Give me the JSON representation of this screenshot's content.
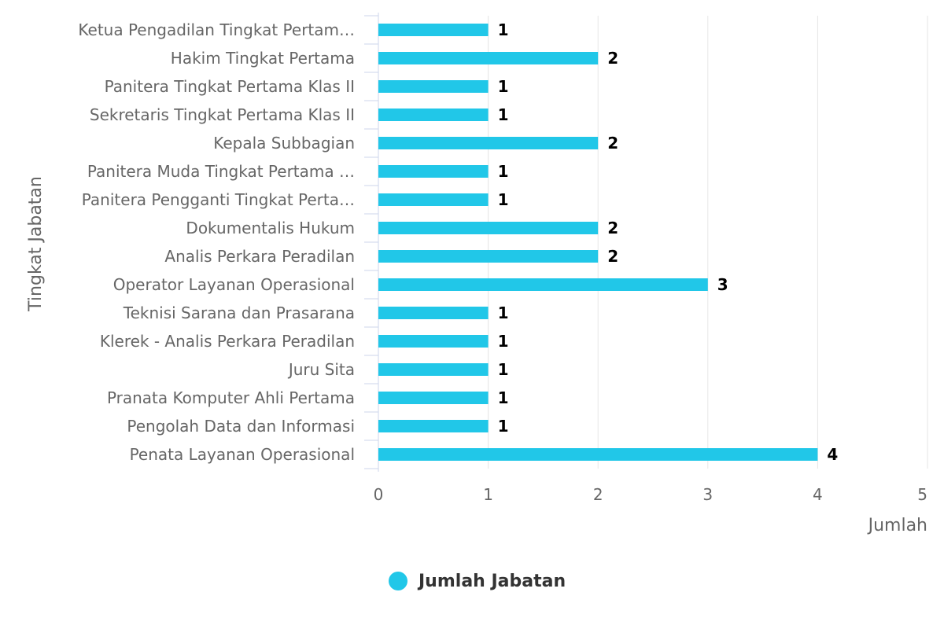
{
  "chart_data": {
    "type": "bar",
    "orientation": "horizontal",
    "categories": [
      "Ketua Pengadilan Tingkat Pertam…",
      "Hakim Tingkat Pertama",
      "Panitera Tingkat Pertama Klas II",
      "Sekretaris Tingkat Pertama Klas II",
      "Kepala Subbagian",
      "Panitera Muda Tingkat Pertama …",
      "Panitera Pengganti Tingkat Perta…",
      "Dokumentalis Hukum",
      "Analis Perkara Peradilan",
      "Operator Layanan Operasional",
      "Teknisi Sarana dan Prasarana",
      "Klerek - Analis Perkara Peradilan",
      "Juru Sita",
      "Pranata Komputer Ahli Pertama",
      "Pengolah Data dan Informasi",
      "Penata Layanan Operasional"
    ],
    "series": [
      {
        "name": "Jumlah Jabatan",
        "values": [
          1,
          2,
          1,
          1,
          2,
          1,
          1,
          2,
          2,
          3,
          1,
          1,
          1,
          1,
          1,
          4
        ]
      }
    ],
    "xlabel": "Jumlah",
    "ylabel": "Tingkat Jabatan",
    "xlim": [
      0,
      5
    ],
    "xticks": [
      "0",
      "1",
      "2",
      "3",
      "4",
      "5"
    ],
    "grid": "vertical",
    "legend_position": "bottom-center",
    "bar_color": "#21c7e8",
    "data_labels": true
  }
}
